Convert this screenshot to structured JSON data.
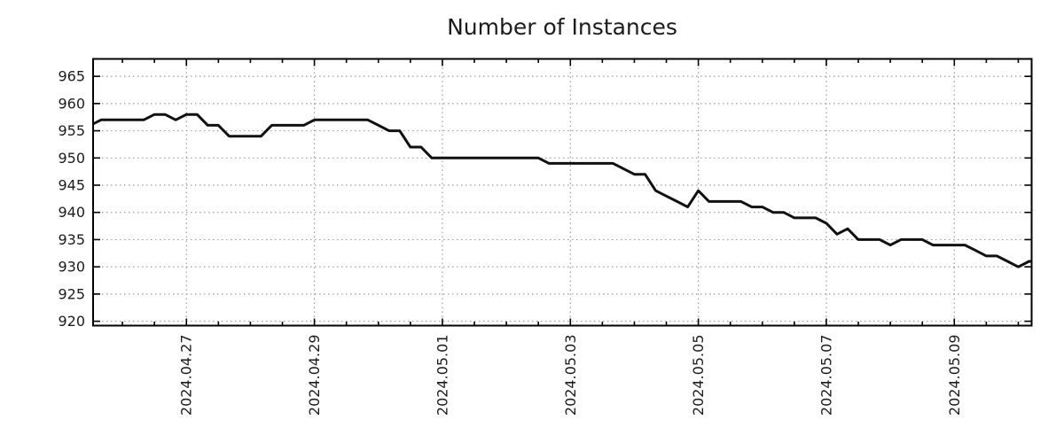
{
  "figure": {
    "background": "#ffffff"
  },
  "chart_data": {
    "type": "line",
    "title": "Number of Instances",
    "xlabel": "",
    "ylabel": "",
    "legend": "none",
    "grid": "dotted-major-both-axes",
    "axis_color": "#000000",
    "grid_color": "#9e9e9e",
    "text_color": "#1c1c1c",
    "line_color": "#111111",
    "line_width": 3,
    "xlim": [
      "2024-04-25 13:00",
      "2024-05-10 05:00"
    ],
    "ylim": [
      919.2,
      968.2
    ],
    "y_ticks": [
      920,
      925,
      930,
      935,
      940,
      945,
      950,
      955,
      960,
      965
    ],
    "x_major_ticks": [
      "2024-04-27",
      "2024-04-29",
      "2024-05-01",
      "2024-05-03",
      "2024-05-05",
      "2024-05-07",
      "2024-05-09"
    ],
    "x_tick_labels": [
      "2024.04.27",
      "2024.04.29",
      "2024.05.01",
      "2024.05.03",
      "2024.05.05",
      "2024.05.07",
      "2024.05.09"
    ],
    "x_minor_interval_hours": 12,
    "x_tick_label_rotation_deg": -90,
    "series": [
      {
        "name": "instances",
        "times": [
          "2024-04-25 12:00",
          "2024-04-25 16:00",
          "2024-04-25 20:00",
          "2024-04-26 00:00",
          "2024-04-26 04:00",
          "2024-04-26 08:00",
          "2024-04-26 12:00",
          "2024-04-26 16:00",
          "2024-04-26 20:00",
          "2024-04-27 00:00",
          "2024-04-27 04:00",
          "2024-04-27 08:00",
          "2024-04-27 12:00",
          "2024-04-27 16:00",
          "2024-04-27 20:00",
          "2024-04-28 00:00",
          "2024-04-28 04:00",
          "2024-04-28 08:00",
          "2024-04-28 12:00",
          "2024-04-28 16:00",
          "2024-04-28 20:00",
          "2024-04-29 00:00",
          "2024-04-29 04:00",
          "2024-04-29 08:00",
          "2024-04-29 12:00",
          "2024-04-29 16:00",
          "2024-04-29 20:00",
          "2024-04-30 00:00",
          "2024-04-30 04:00",
          "2024-04-30 08:00",
          "2024-04-30 12:00",
          "2024-04-30 16:00",
          "2024-04-30 20:00",
          "2024-05-01 00:00",
          "2024-05-01 04:00",
          "2024-05-01 08:00",
          "2024-05-01 12:00",
          "2024-05-01 16:00",
          "2024-05-01 20:00",
          "2024-05-02 00:00",
          "2024-05-02 04:00",
          "2024-05-02 08:00",
          "2024-05-02 12:00",
          "2024-05-02 16:00",
          "2024-05-02 20:00",
          "2024-05-03 00:00",
          "2024-05-03 04:00",
          "2024-05-03 08:00",
          "2024-05-03 12:00",
          "2024-05-03 16:00",
          "2024-05-03 20:00",
          "2024-05-04 00:00",
          "2024-05-04 04:00",
          "2024-05-04 08:00",
          "2024-05-04 12:00",
          "2024-05-04 16:00",
          "2024-05-04 20:00",
          "2024-05-05 00:00",
          "2024-05-05 04:00",
          "2024-05-05 08:00",
          "2024-05-05 12:00",
          "2024-05-05 16:00",
          "2024-05-05 20:00",
          "2024-05-06 00:00",
          "2024-05-06 04:00",
          "2024-05-06 08:00",
          "2024-05-06 12:00",
          "2024-05-06 16:00",
          "2024-05-06 20:00",
          "2024-05-07 00:00",
          "2024-05-07 04:00",
          "2024-05-07 08:00",
          "2024-05-07 12:00",
          "2024-05-07 16:00",
          "2024-05-07 20:00",
          "2024-05-08 00:00",
          "2024-05-08 04:00",
          "2024-05-08 08:00",
          "2024-05-08 12:00",
          "2024-05-08 16:00",
          "2024-05-08 20:00",
          "2024-05-09 00:00",
          "2024-05-09 04:00",
          "2024-05-09 08:00",
          "2024-05-09 12:00",
          "2024-05-09 16:00",
          "2024-05-09 20:00",
          "2024-05-10 00:00",
          "2024-05-10 04:00",
          "2024-05-10 05:00"
        ],
        "values": [
          956,
          957,
          957,
          957,
          957,
          957,
          958,
          958,
          957,
          958,
          958,
          956,
          956,
          954,
          954,
          954,
          954,
          956,
          956,
          956,
          956,
          957,
          957,
          957,
          957,
          957,
          957,
          956,
          955,
          955,
          952,
          952,
          950,
          950,
          950,
          950,
          950,
          950,
          950,
          950,
          950,
          950,
          950,
          949,
          949,
          949,
          949,
          949,
          949,
          949,
          948,
          947,
          947,
          944,
          943,
          942,
          941,
          944,
          942,
          942,
          942,
          942,
          941,
          941,
          940,
          940,
          939,
          939,
          939,
          938,
          936,
          937,
          935,
          935,
          935,
          934,
          935,
          935,
          935,
          934,
          934,
          934,
          934,
          933,
          932,
          932,
          931,
          930,
          931,
          931
        ]
      }
    ]
  }
}
